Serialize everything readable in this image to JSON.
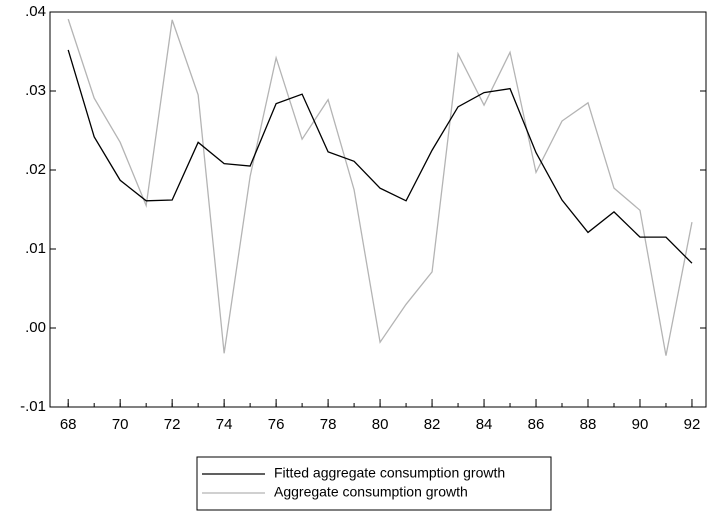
{
  "chart_data": {
    "type": "line",
    "x": [
      68,
      69,
      70,
      71,
      72,
      73,
      74,
      75,
      76,
      77,
      78,
      79,
      80,
      81,
      82,
      83,
      84,
      85,
      86,
      87,
      88,
      89,
      90,
      91,
      92
    ],
    "series": [
      {
        "name": "Fitted aggregate consumption growth",
        "color": "#000000",
        "values": [
          0.0352,
          0.0242,
          0.0187,
          0.0161,
          0.0162,
          0.0235,
          0.0208,
          0.0205,
          0.0284,
          0.0296,
          0.0223,
          0.0211,
          0.0177,
          0.0161,
          0.0225,
          0.028,
          0.0298,
          0.0303,
          0.0222,
          0.0162,
          0.0121,
          0.0147,
          0.0115,
          0.0115,
          0.0082
        ]
      },
      {
        "name": "Aggregate consumption growth",
        "color": "#b4b4b4",
        "values": [
          0.0391,
          0.0291,
          0.0235,
          0.0155,
          0.039,
          0.0295,
          -0.0032,
          0.0192,
          0.0342,
          0.0239,
          0.0289,
          0.0175,
          -0.0018,
          0.003,
          0.0071,
          0.0347,
          0.0282,
          0.0349,
          0.0197,
          0.0262,
          0.0285,
          0.0177,
          0.0149,
          -0.0035,
          0.0134
        ]
      }
    ],
    "xlim": [
      67.3,
      92.54
    ],
    "xticks": [
      68,
      70,
      72,
      74,
      76,
      78,
      80,
      82,
      84,
      86,
      88,
      90,
      92
    ],
    "ylim": [
      -0.01,
      0.04
    ],
    "yticks": [
      {
        "value": -0.01,
        "label": "-.01"
      },
      {
        "value": 0,
        "label": ".00"
      },
      {
        "value": 0.01,
        "label": ".01"
      },
      {
        "value": 0.02,
        "label": ".02"
      },
      {
        "value": 0.03,
        "label": ".03"
      },
      {
        "value": 0.04,
        "label": ".04"
      }
    ],
    "legend": "bottom"
  }
}
